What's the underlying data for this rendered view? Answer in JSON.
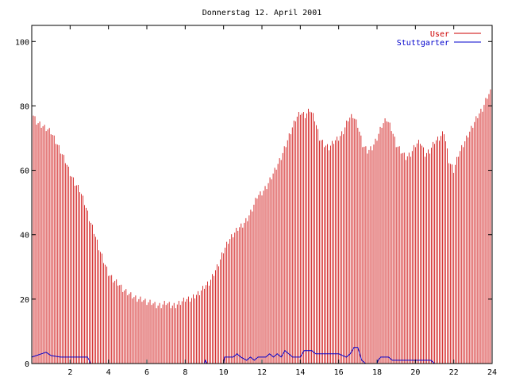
{
  "chart_data": {
    "type": "bar",
    "title": "Donnerstag 12. April 2001",
    "xlabel": "",
    "ylabel": "",
    "xlim": [
      0,
      24
    ],
    "ylim": [
      0,
      105
    ],
    "x_ticks": [
      2,
      4,
      6,
      8,
      10,
      12,
      14,
      16,
      18,
      20,
      22,
      24
    ],
    "y_ticks": [
      0,
      20,
      40,
      60,
      80,
      100
    ],
    "grid": false,
    "legend_position": "top-right",
    "colors": {
      "user": "#cc0000",
      "stuttgarter": "#0000cc",
      "axes": "#000000"
    },
    "series": [
      {
        "name": "User",
        "style": "impulses",
        "points": [
          [
            0.0,
            78
          ],
          [
            0.25,
            75
          ],
          [
            0.5,
            74
          ],
          [
            0.75,
            73
          ],
          [
            1.0,
            72
          ],
          [
            1.25,
            69
          ],
          [
            1.5,
            66
          ],
          [
            1.75,
            63
          ],
          [
            2.0,
            59
          ],
          [
            2.25,
            56
          ],
          [
            2.5,
            54
          ],
          [
            2.75,
            50
          ],
          [
            3.0,
            45
          ],
          [
            3.25,
            41
          ],
          [
            3.5,
            36
          ],
          [
            3.75,
            32
          ],
          [
            4.0,
            28
          ],
          [
            4.25,
            26
          ],
          [
            4.5,
            25
          ],
          [
            4.75,
            23
          ],
          [
            5.0,
            22
          ],
          [
            5.25,
            21
          ],
          [
            5.5,
            20
          ],
          [
            5.75,
            20
          ],
          [
            6.0,
            19
          ],
          [
            6.25,
            19
          ],
          [
            6.5,
            18
          ],
          [
            6.75,
            18
          ],
          [
            7.0,
            19
          ],
          [
            7.25,
            18
          ],
          [
            7.5,
            18
          ],
          [
            7.75,
            19
          ],
          [
            8.0,
            20
          ],
          [
            8.25,
            20
          ],
          [
            8.5,
            21
          ],
          [
            8.75,
            22
          ],
          [
            9.0,
            24
          ],
          [
            9.25,
            25
          ],
          [
            9.5,
            28
          ],
          [
            9.75,
            31
          ],
          [
            10.0,
            35
          ],
          [
            10.25,
            38
          ],
          [
            10.5,
            40
          ],
          [
            10.75,
            42
          ],
          [
            11.0,
            43
          ],
          [
            11.25,
            45
          ],
          [
            11.5,
            48
          ],
          [
            11.75,
            52
          ],
          [
            12.0,
            53
          ],
          [
            12.25,
            55
          ],
          [
            12.5,
            58
          ],
          [
            12.75,
            61
          ],
          [
            13.0,
            64
          ],
          [
            13.25,
            68
          ],
          [
            13.5,
            72
          ],
          [
            13.75,
            76
          ],
          [
            14.0,
            78
          ],
          [
            14.25,
            77
          ],
          [
            14.5,
            79
          ],
          [
            14.75,
            76
          ],
          [
            15.0,
            70
          ],
          [
            15.25,
            68
          ],
          [
            15.5,
            67
          ],
          [
            15.75,
            69
          ],
          [
            16.0,
            70
          ],
          [
            16.25,
            72
          ],
          [
            16.5,
            76
          ],
          [
            16.75,
            77
          ],
          [
            17.0,
            74
          ],
          [
            17.25,
            68
          ],
          [
            17.5,
            66
          ],
          [
            17.75,
            67
          ],
          [
            18.0,
            70
          ],
          [
            18.25,
            74
          ],
          [
            18.5,
            76
          ],
          [
            18.75,
            73
          ],
          [
            19.0,
            68
          ],
          [
            19.25,
            66
          ],
          [
            19.5,
            64
          ],
          [
            19.75,
            65
          ],
          [
            20.0,
            68
          ],
          [
            20.25,
            69
          ],
          [
            20.5,
            65
          ],
          [
            20.75,
            66
          ],
          [
            21.0,
            69
          ],
          [
            21.25,
            70
          ],
          [
            21.5,
            72
          ],
          [
            21.75,
            63
          ],
          [
            22.0,
            60
          ],
          [
            22.25,
            65
          ],
          [
            22.5,
            68
          ],
          [
            22.75,
            71
          ],
          [
            23.0,
            74
          ],
          [
            23.25,
            77
          ],
          [
            23.5,
            79
          ],
          [
            23.75,
            83
          ],
          [
            24.0,
            85
          ]
        ]
      },
      {
        "name": "Stuttgarter",
        "style": "line",
        "points": [
          [
            0.0,
            2
          ],
          [
            0.5,
            3
          ],
          [
            0.75,
            3.5
          ],
          [
            1.0,
            2.5
          ],
          [
            1.5,
            2
          ],
          [
            2.5,
            2
          ],
          [
            2.9,
            2
          ],
          [
            3.0,
            1
          ],
          [
            3.05,
            0
          ],
          [
            9.0,
            0
          ],
          [
            9.05,
            1
          ],
          [
            9.15,
            0
          ],
          [
            10.0,
            0
          ],
          [
            10.05,
            2
          ],
          [
            10.5,
            2
          ],
          [
            10.7,
            3
          ],
          [
            10.9,
            2
          ],
          [
            11.2,
            1
          ],
          [
            11.4,
            2
          ],
          [
            11.6,
            1
          ],
          [
            11.8,
            2
          ],
          [
            12.2,
            2
          ],
          [
            12.4,
            3
          ],
          [
            12.6,
            2
          ],
          [
            12.8,
            3
          ],
          [
            13.0,
            2
          ],
          [
            13.2,
            4
          ],
          [
            13.4,
            3
          ],
          [
            13.6,
            2
          ],
          [
            14.0,
            2
          ],
          [
            14.2,
            4
          ],
          [
            14.6,
            4
          ],
          [
            14.8,
            3
          ],
          [
            15.4,
            3
          ],
          [
            16.0,
            3
          ],
          [
            16.4,
            2
          ],
          [
            16.6,
            3
          ],
          [
            16.8,
            5
          ],
          [
            17.0,
            5
          ],
          [
            17.2,
            1
          ],
          [
            17.4,
            0
          ],
          [
            18.0,
            0
          ],
          [
            18.05,
            1
          ],
          [
            18.2,
            2
          ],
          [
            18.6,
            2
          ],
          [
            18.8,
            1
          ],
          [
            20.8,
            1
          ],
          [
            21.0,
            0
          ],
          [
            24.0,
            0
          ]
        ]
      }
    ]
  }
}
